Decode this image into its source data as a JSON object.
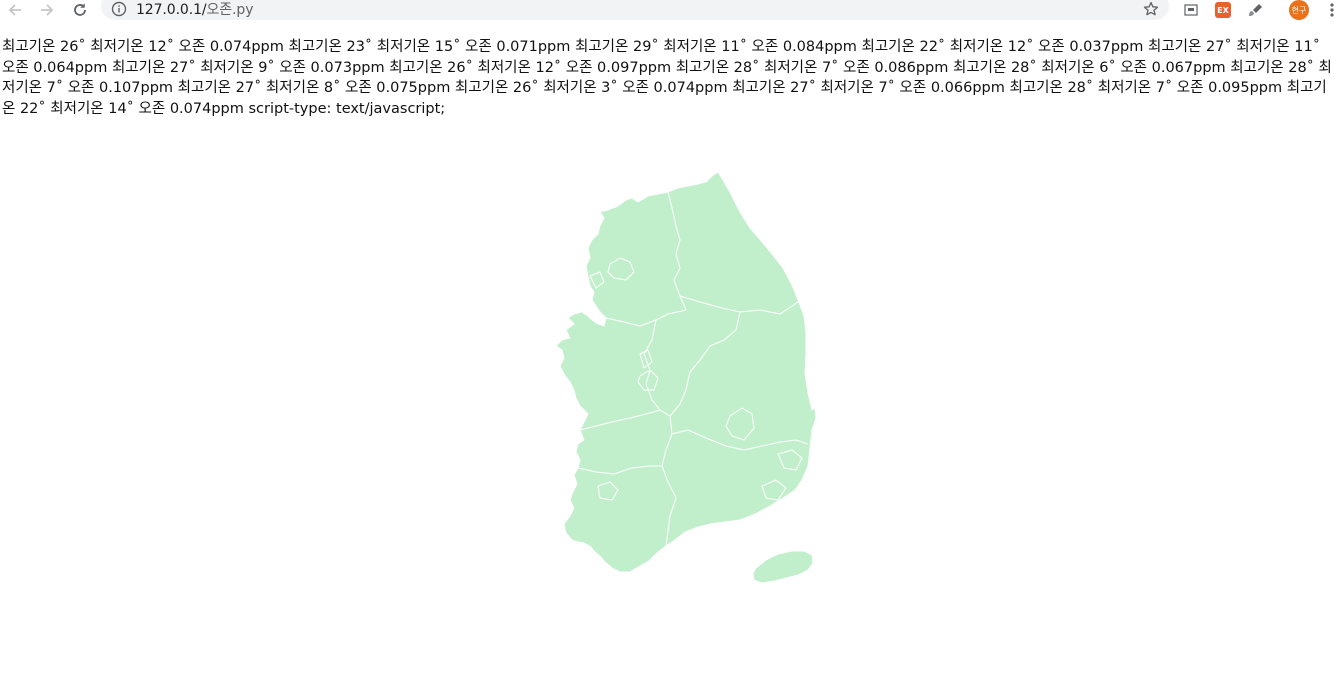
{
  "browser": {
    "url_host": "127.0.0.1/",
    "url_path": "오존.py",
    "ext_badge": "EX",
    "profile_label": "현구"
  },
  "weather_text": "최고기온 26˚ 최저기온 12˚ 오존 0.074ppm 최고기온 23˚ 최저기온 15˚ 오존 0.071ppm 최고기온 29˚ 최저기온 11˚ 오존 0.084ppm 최고기온 22˚ 최저기온 12˚ 오존 0.037ppm 최고기온 27˚ 최저기온 11˚ 오존 0.064ppm 최고기온 27˚ 최저기온 9˚ 오존 0.073ppm 최고기온 26˚ 최저기온 12˚ 오존 0.097ppm 최고기온 28˚ 최저기온 7˚ 오존 0.086ppm 최고기온 28˚ 최저기온 6˚ 오존 0.067ppm 최고기온 28˚ 최저기온 7˚ 오존 0.107ppm 최고기온 27˚ 최저기온 8˚ 오존 0.075ppm 최고기온 26˚ 최저기온 3˚ 오존 0.074ppm 최고기온 27˚ 최저기온 7˚ 오존 0.066ppm 최고기온 28˚ 최저기온 7˚ 오존 0.095ppm 최고기온 22˚ 최저기온 14˚ 오존 0.074ppm script-type: text/javascript;",
  "map": {
    "fill_color": "#c2efcb",
    "border_color": "#ffffff"
  }
}
